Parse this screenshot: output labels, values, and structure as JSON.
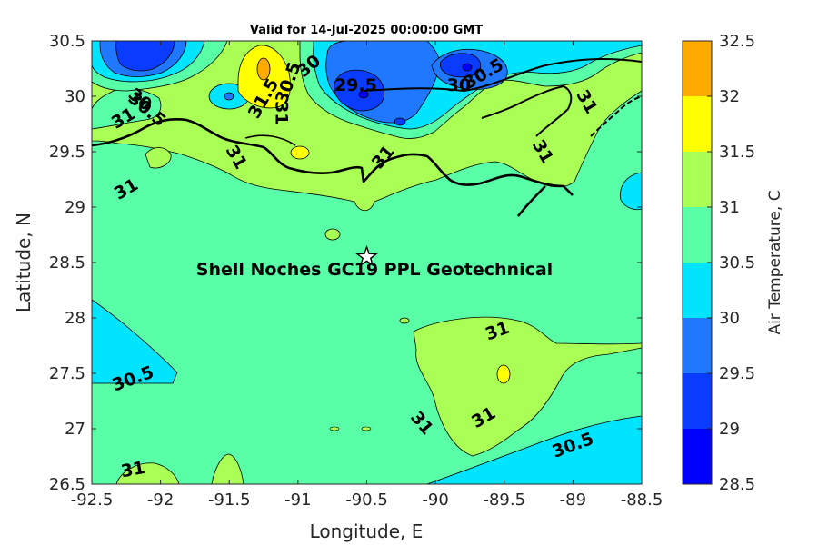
{
  "chart_data": {
    "type": "filled-contour",
    "title": "Valid for 14-Jul-2025 00:00:00 GMT",
    "xlabel": "Longitude, E",
    "ylabel": "Latitude, N",
    "xlim": [
      -92.5,
      -88.5
    ],
    "ylim": [
      26.5,
      30.5
    ],
    "xticks": [
      "-92.5",
      "-92",
      "-91.5",
      "-91",
      "-90.5",
      "-90",
      "-89.5",
      "-89",
      "-88.5"
    ],
    "yticks": [
      "30.5",
      "30",
      "29.5",
      "29",
      "28.5",
      "28",
      "27.5",
      "27",
      "26.5"
    ],
    "colorbar": {
      "label": "Air Temperature, C",
      "ticks": [
        "32.5",
        "32",
        "31.5",
        "31",
        "30.5",
        "30",
        "29.5",
        "29",
        "28.5"
      ],
      "levels": [
        28.5,
        29,
        29.5,
        30,
        30.5,
        31,
        31.5,
        32,
        32.5
      ],
      "colors": [
        "#0000ff",
        "#0a3cff",
        "#1f78ff",
        "#00e4ff",
        "#59ffa6",
        "#aaff55",
        "#ffff00",
        "#ffaa00",
        "#ff5500"
      ]
    },
    "contour_labels": [
      {
        "text": "30",
        "lon": -92.15,
        "lat": 29.97,
        "rot": 40
      },
      {
        "text": "30.5",
        "lon": -92.1,
        "lat": 29.88,
        "rot": 40
      },
      {
        "text": "31",
        "lon": -92.27,
        "lat": 29.8,
        "rot": -30
      },
      {
        "text": "31.5",
        "lon": -91.25,
        "lat": 29.98,
        "rot": -60
      },
      {
        "text": "30.5",
        "lon": -91.07,
        "lat": 30.12,
        "rot": -70
      },
      {
        "text": "30",
        "lon": -90.92,
        "lat": 30.27,
        "rot": -40
      },
      {
        "text": "31",
        "lon": -91.12,
        "lat": 29.85,
        "rot": 90
      },
      {
        "text": "29.5",
        "lon": -90.58,
        "lat": 30.1,
        "rot": 0
      },
      {
        "text": "30",
        "lon": -89.83,
        "lat": 30.1,
        "rot": 0
      },
      {
        "text": "30.5",
        "lon": -89.65,
        "lat": 30.2,
        "rot": -30
      },
      {
        "text": "31",
        "lon": -88.9,
        "lat": 29.95,
        "rot": 60
      },
      {
        "text": "31",
        "lon": -91.45,
        "lat": 29.45,
        "rot": 60
      },
      {
        "text": "31",
        "lon": -90.38,
        "lat": 29.45,
        "rot": -50
      },
      {
        "text": "31",
        "lon": -89.22,
        "lat": 29.5,
        "rot": 60
      },
      {
        "text": "31",
        "lon": -92.25,
        "lat": 29.16,
        "rot": -30
      },
      {
        "text": "31",
        "lon": -89.55,
        "lat": 27.88,
        "rot": -20
      },
      {
        "text": "30.5",
        "lon": -92.2,
        "lat": 27.45,
        "rot": -20
      },
      {
        "text": "31",
        "lon": -89.65,
        "lat": 27.1,
        "rot": -30
      },
      {
        "text": "31",
        "lon": -90.1,
        "lat": 27.05,
        "rot": 50
      },
      {
        "text": "30.5",
        "lon": -89.0,
        "lat": 26.85,
        "rot": -20
      },
      {
        "text": "31",
        "lon": -92.2,
        "lat": 26.63,
        "rot": -10
      }
    ],
    "site": {
      "label": "Shell Noches   GC19 PPL  Geotechnical",
      "lon": -90.5,
      "lat": 28.55
    }
  }
}
